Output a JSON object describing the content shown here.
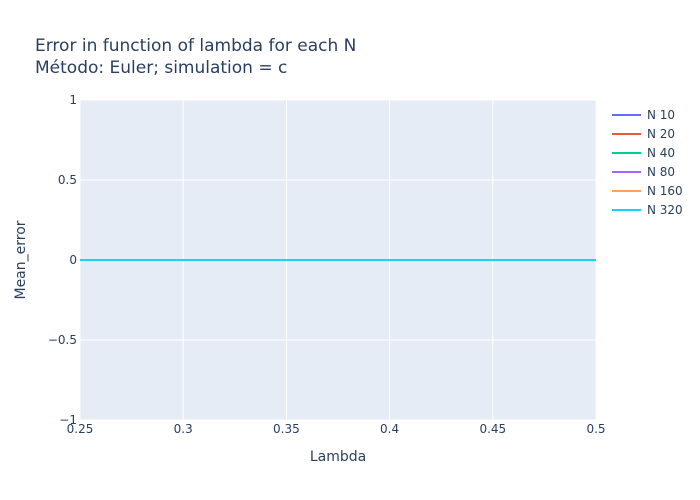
{
  "chart_data": {
    "type": "line",
    "title": "Error in function of lambda for each N",
    "subtitle": "Método: Euler; simulation = c",
    "xlabel": "Lambda",
    "ylabel": "Mean_error",
    "xlim": [
      0.25,
      0.5
    ],
    "ylim": [
      -1,
      1
    ],
    "x_ticks": [
      "0.25",
      "0.3",
      "0.35",
      "0.4",
      "0.45",
      "0.5"
    ],
    "y_ticks": [
      "1",
      "0.5",
      "0",
      "−0.5",
      "−1"
    ],
    "grid": true,
    "legend_position": "right",
    "x": [
      0.25,
      0.5
    ],
    "series": [
      {
        "name": "N 10",
        "color": "#636efa",
        "values": [
          0,
          0
        ]
      },
      {
        "name": "N 20",
        "color": "#ef553b",
        "values": [
          0,
          0
        ]
      },
      {
        "name": "N 40",
        "color": "#00cc96",
        "values": [
          0,
          0
        ]
      },
      {
        "name": "N 80",
        "color": "#ab63fa",
        "values": [
          0,
          0
        ]
      },
      {
        "name": "N 160",
        "color": "#ffa15a",
        "values": [
          0,
          0
        ]
      },
      {
        "name": "N 320",
        "color": "#19d3f3",
        "values": [
          0,
          0
        ]
      }
    ],
    "plot_background": "#e5ecf6",
    "gridline_color": "#ffffff"
  }
}
